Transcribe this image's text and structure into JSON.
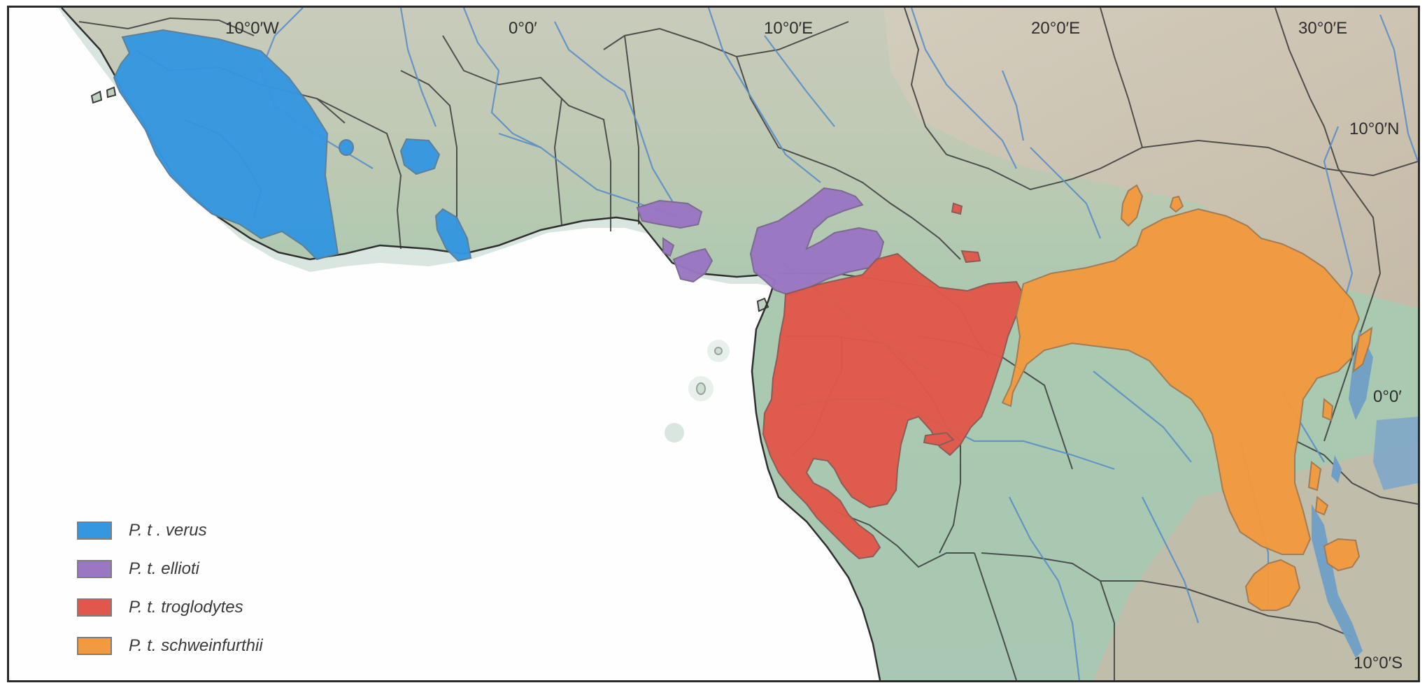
{
  "coordinate_labels": {
    "lon_10w": "10°0′W",
    "lon_0": "0°0′",
    "lon_10e": "10°0′E",
    "lon_20e": "20°0′E",
    "lon_30e": "30°0′E",
    "lat_10n": "10°0′N",
    "lat_0": "0°0′",
    "lat_10s": "10°0′S"
  },
  "legend": [
    {
      "label": "P. t . verus",
      "color": "#3597e0"
    },
    {
      "label": "P. t. ellioti",
      "color": "#9a76c3"
    },
    {
      "label": "P. t. troglodytes",
      "color": "#e0584b"
    },
    {
      "label": "P. t. schweinfurthii",
      "color": "#f29a3f"
    }
  ]
}
